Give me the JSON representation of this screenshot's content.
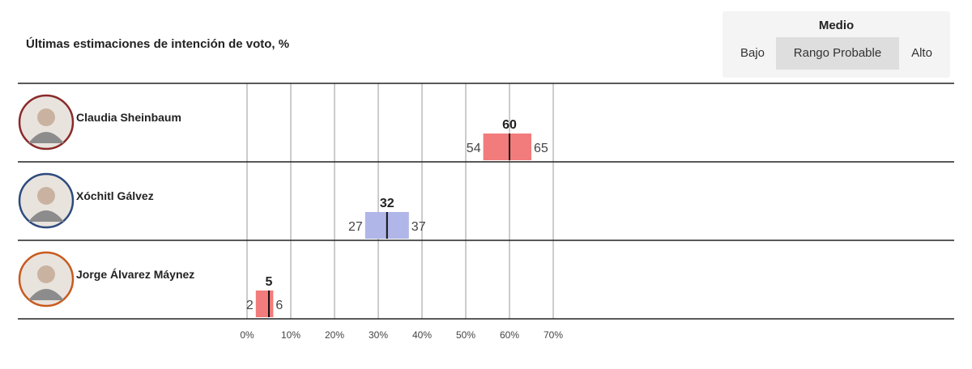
{
  "chart_data": {
    "type": "bar",
    "title": "Últimas estimaciones de intención de voto, %",
    "xlim": [
      0,
      70
    ],
    "x_ticks": [
      "0%",
      "10%",
      "20%",
      "30%",
      "40%",
      "50%",
      "60%",
      "70%"
    ],
    "x_tick_values": [
      0,
      10,
      20,
      30,
      40,
      50,
      60,
      70
    ],
    "categories": [
      "Claudia Sheinbaum",
      "Xóchitl Gálvez",
      "Jorge Álvarez Máynez"
    ],
    "series": [
      {
        "low": 54,
        "median": 60,
        "high": 65,
        "color": "#f27b7b",
        "ring": "#8a2a2a"
      },
      {
        "low": 27,
        "median": 32,
        "high": 37,
        "color": "#b1b6e8",
        "ring": "#2c4a7e"
      },
      {
        "low": 2,
        "median": 5,
        "high": 6,
        "color": "#f27b7b",
        "ring": "#c85a1e"
      }
    ]
  },
  "controls": {
    "heading": "Medio",
    "options": [
      "Bajo",
      "Rango Probable",
      "Alto"
    ],
    "selected": "Rango Probable"
  }
}
